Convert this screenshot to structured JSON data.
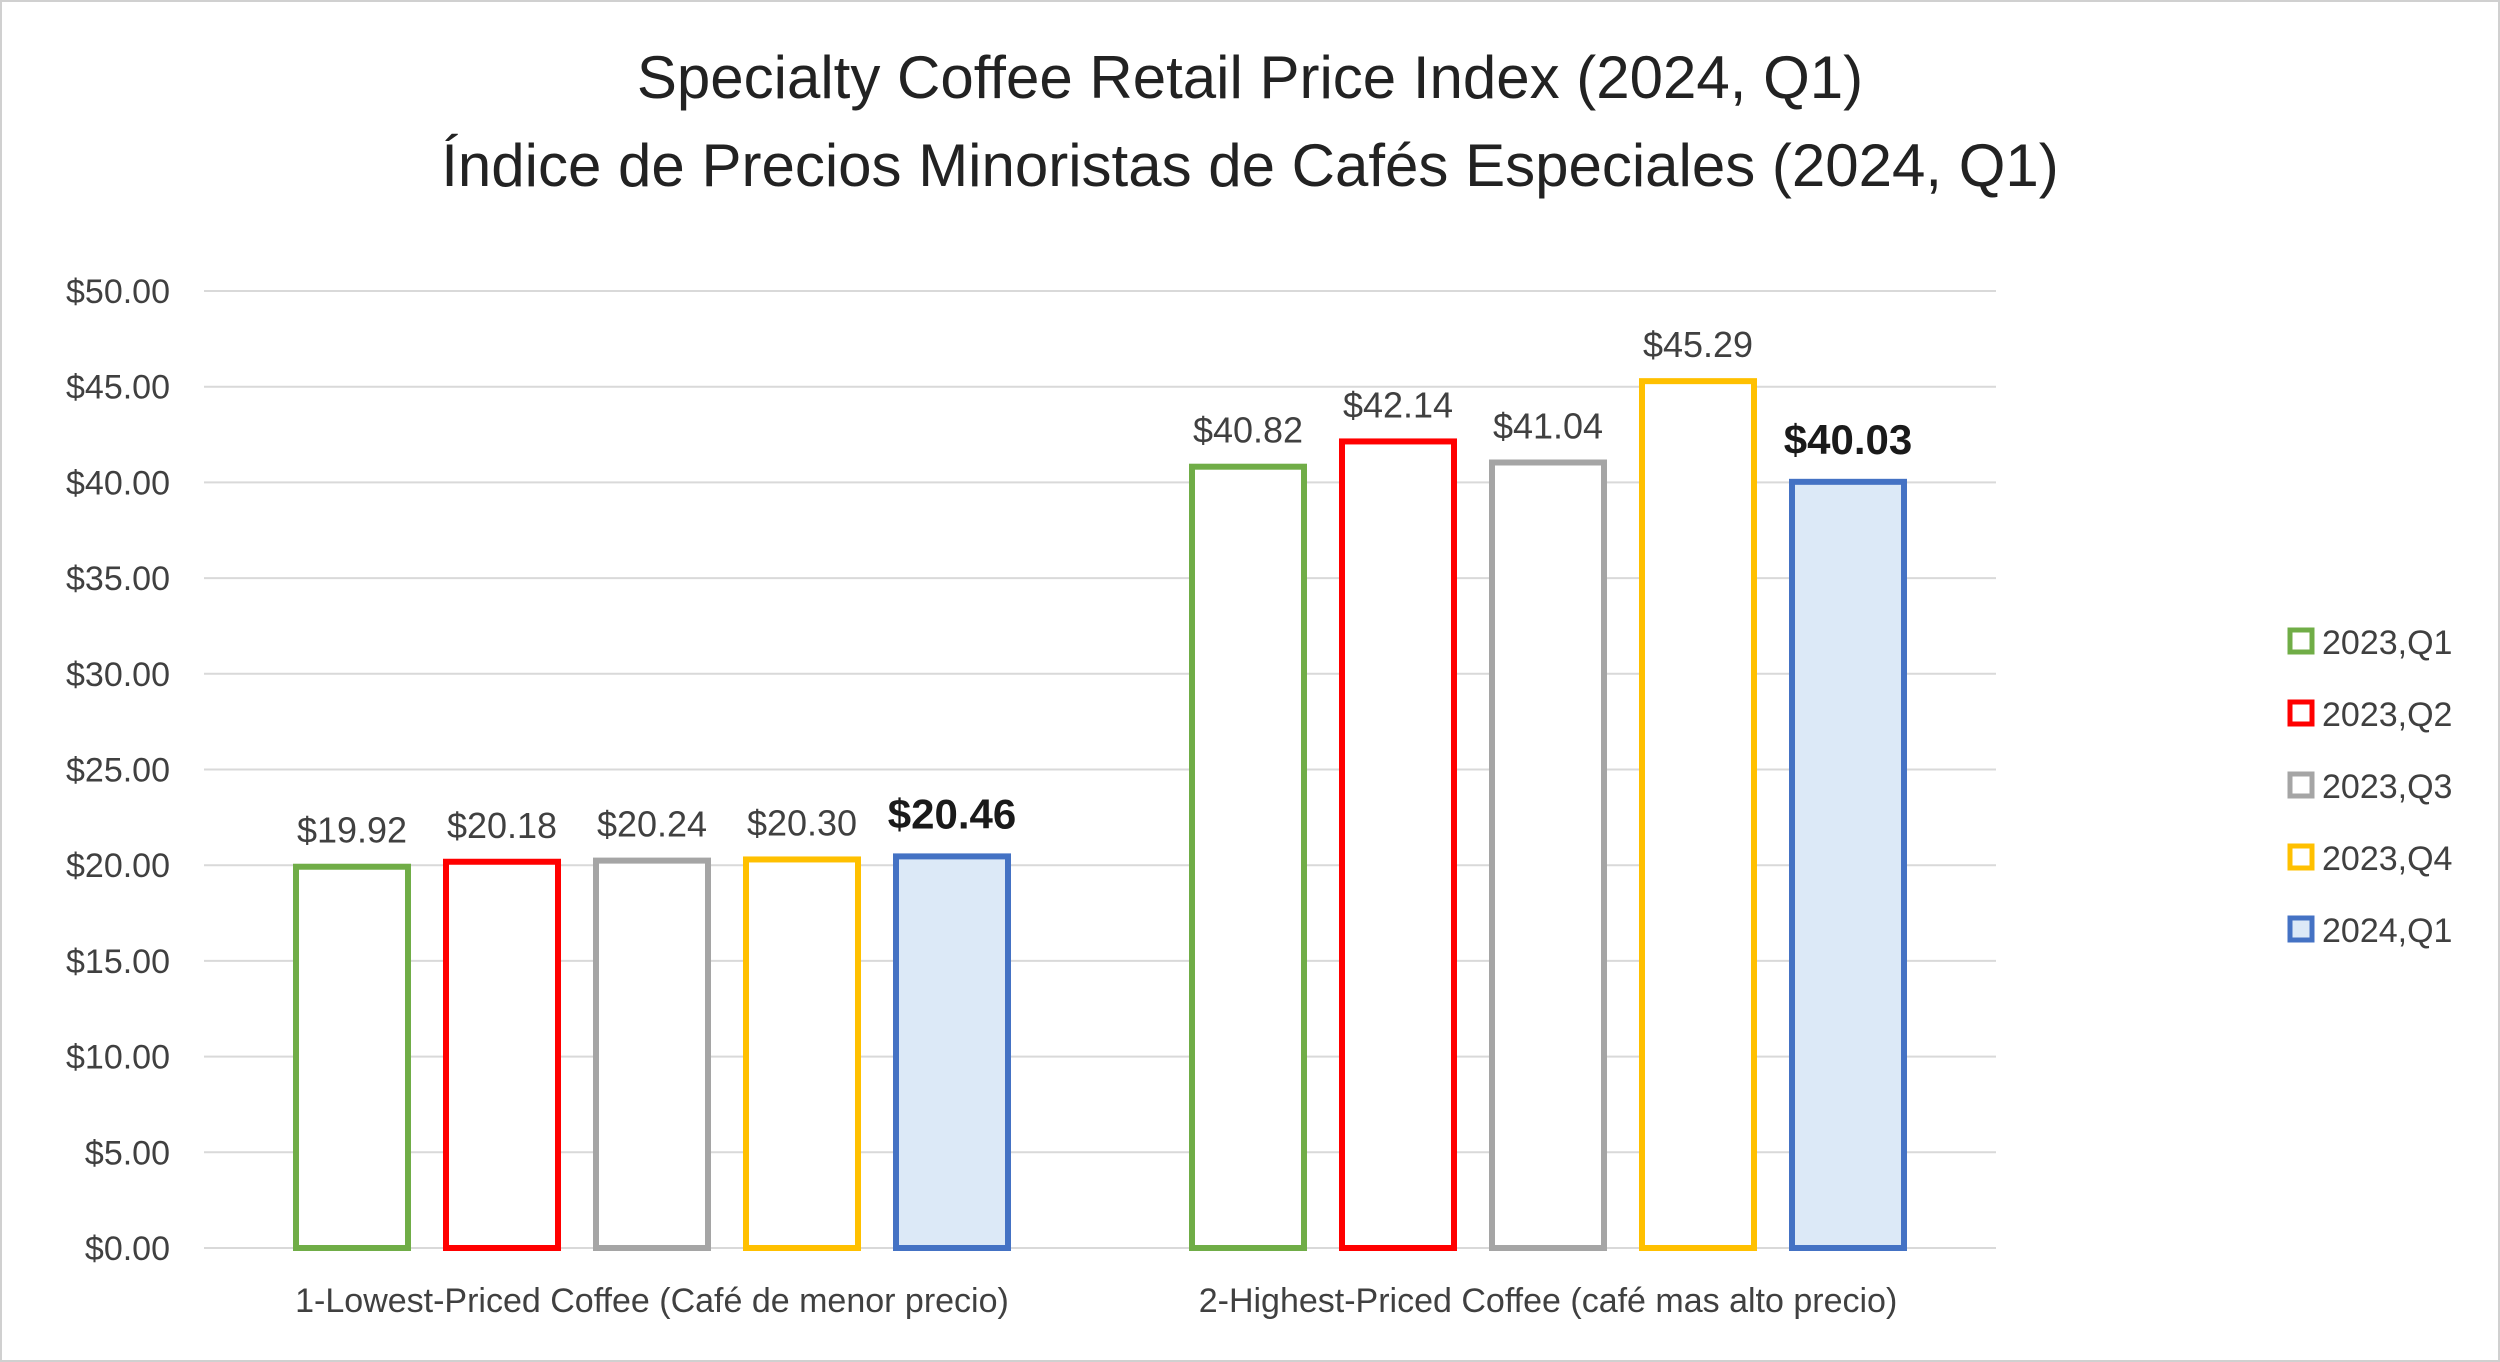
{
  "chart_data": {
    "type": "bar",
    "title": "Specialty Coffee Retail Price Index (2024, Q1)",
    "subtitle": "Índice de Precios Minoristas de Cafés Especiales (2024, Q1)",
    "categories": [
      "1-Lowest-Priced Coffee (Café de menor precio)",
      "2-Highest-Priced Coffee (café mas alto precio)"
    ],
    "series": [
      {
        "name": "2023,Q1",
        "values": [
          19.92,
          40.82
        ],
        "labels": [
          "$19.92",
          "$40.82"
        ],
        "color": "#70ad47",
        "fill": "#ffffff"
      },
      {
        "name": "2023,Q2",
        "values": [
          20.18,
          42.14
        ],
        "labels": [
          "$20.18",
          "$42.14"
        ],
        "color": "#ff0000",
        "fill": "#ffffff"
      },
      {
        "name": "2023,Q3",
        "values": [
          20.24,
          41.04
        ],
        "labels": [
          "$20.24",
          "$41.04"
        ],
        "color": "#a5a5a5",
        "fill": "#ffffff"
      },
      {
        "name": "2023,Q4",
        "values": [
          20.3,
          45.29
        ],
        "labels": [
          "$20.30",
          "$45.29"
        ],
        "color": "#ffc000",
        "fill": "#ffffff"
      },
      {
        "name": "2024,Q1",
        "values": [
          20.46,
          40.03
        ],
        "labels": [
          "$20.46",
          "$40.03"
        ],
        "color": "#4472c4",
        "fill": "#dce9f7",
        "emphasis": true
      }
    ],
    "ylim": [
      0,
      50
    ],
    "yticks": [
      0,
      5,
      10,
      15,
      20,
      25,
      30,
      35,
      40,
      45,
      50
    ],
    "ytick_labels": [
      "$0.00",
      "$5.00",
      "$10.00",
      "$15.00",
      "$20.00",
      "$25.00",
      "$30.00",
      "$35.00",
      "$40.00",
      "$45.00",
      "$50.00"
    ],
    "grid": true,
    "legend": "right"
  }
}
